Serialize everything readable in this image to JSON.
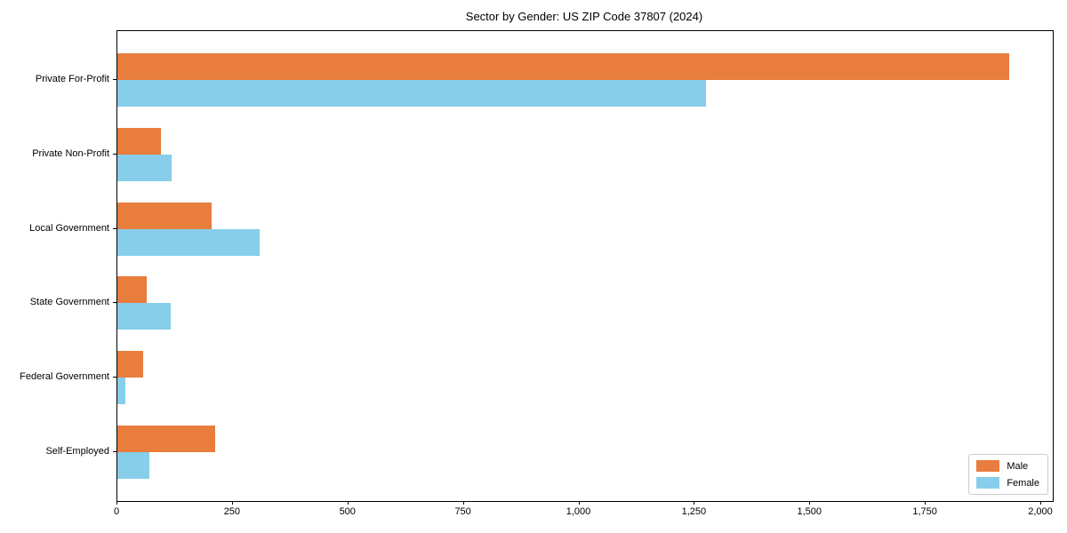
{
  "chart_data": {
    "type": "bar",
    "orientation": "horizontal",
    "title": "Sector by Gender: US ZIP Code 37807 (2024)",
    "categories": [
      "Private For-Profit",
      "Private Non-Profit",
      "Local Government",
      "State Government",
      "Federal Government",
      "Self-Employed"
    ],
    "series": [
      {
        "name": "Male",
        "color": "#e87d3d",
        "values": [
          1930,
          95,
          205,
          64,
          56,
          211
        ]
      },
      {
        "name": "Female",
        "color": "#87ceeb",
        "values": [
          1275,
          117,
          308,
          116,
          17,
          69
        ]
      }
    ],
    "xlabel": "",
    "ylabel": "",
    "xlim": [
      0,
      2025
    ],
    "x_ticks": [
      0,
      250,
      500,
      750,
      1000,
      1250,
      1500,
      1750,
      2000
    ],
    "x_tick_labels": [
      "0",
      "250",
      "500",
      "750",
      "1,000",
      "1,250",
      "1,500",
      "1,750",
      "2,000"
    ],
    "grid": false,
    "legend_position": "lower right"
  }
}
